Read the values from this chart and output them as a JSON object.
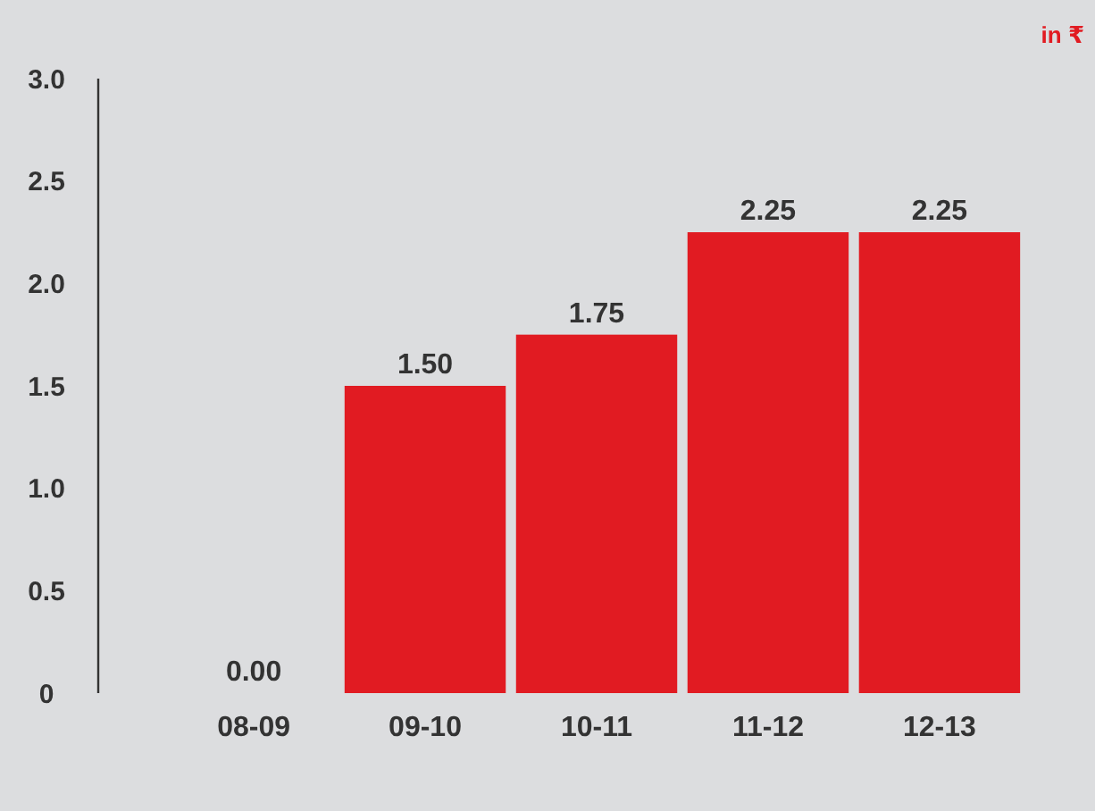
{
  "chart_data": {
    "type": "bar",
    "categories": [
      "08-09",
      "09-10",
      "10-11",
      "11-12",
      "12-13"
    ],
    "values": [
      0,
      1.5,
      1.75,
      2.25,
      2.25
    ],
    "color": "#e11b22",
    "value_labels": [
      "0.00",
      "1.50",
      "1.75",
      "2.25",
      "2.25"
    ],
    "ylim": [
      0,
      3
    ],
    "yticks": [
      {
        "value": 0,
        "label": "0"
      },
      0.5,
      {
        "value": 1,
        "label": "1.0"
      },
      1.5,
      {
        "value": 2,
        "label": "2.0"
      },
      2.5,
      {
        "value": 3,
        "label": "3.0"
      }
    ],
    "grid": false,
    "annotations": [
      "in ₹"
    ]
  }
}
